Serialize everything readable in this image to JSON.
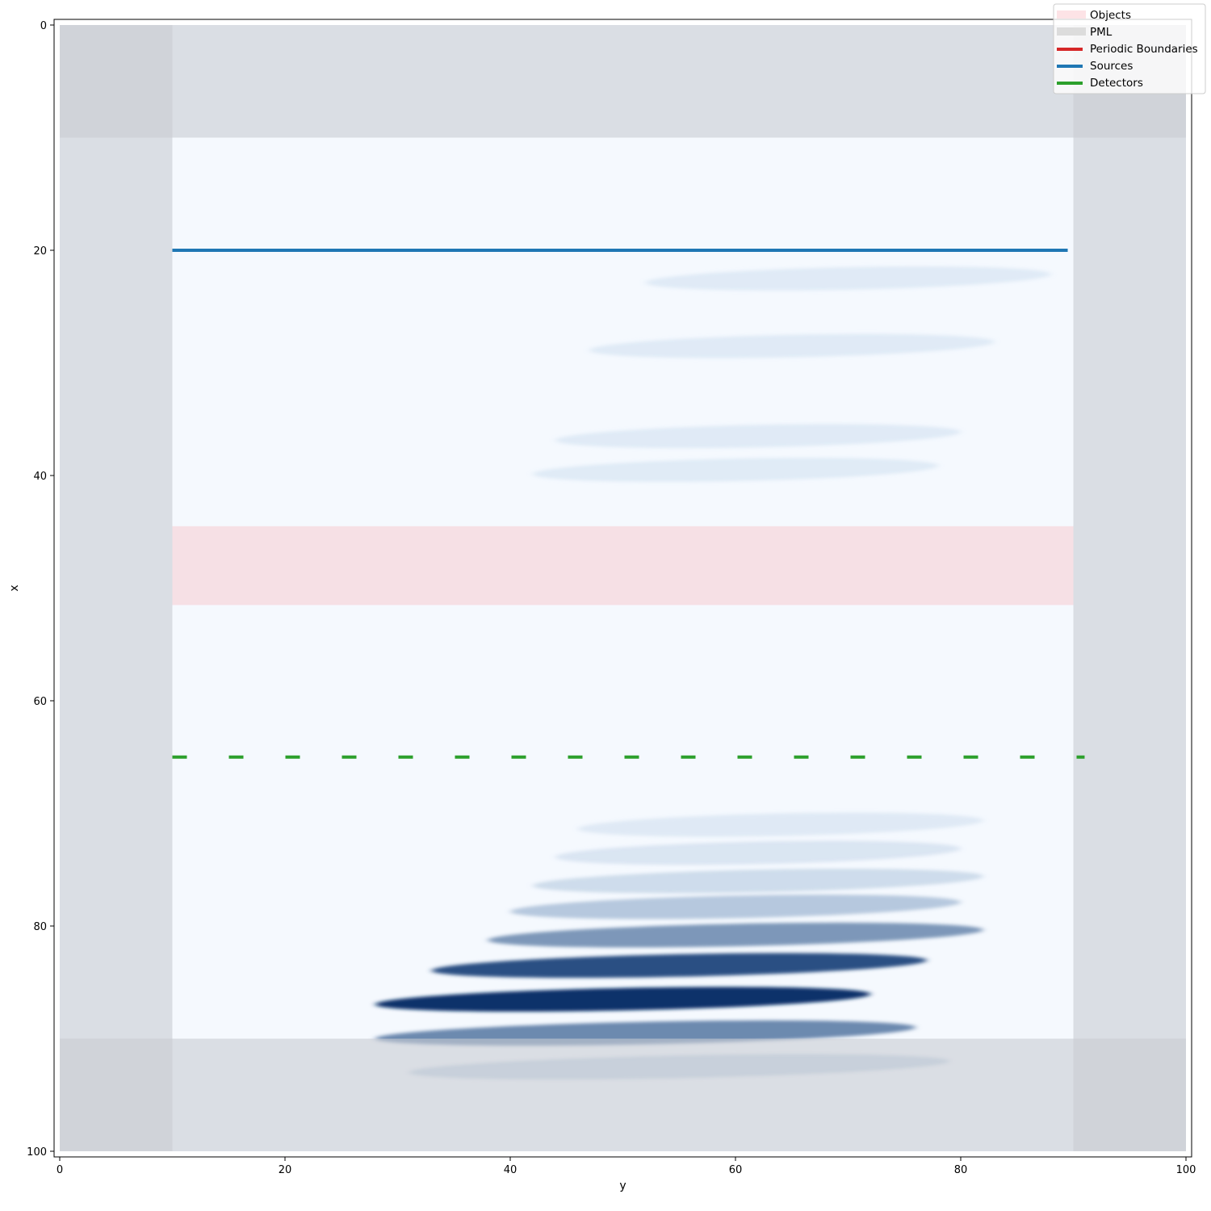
{
  "chart_data": {
    "type": "heatmap",
    "title": "",
    "xlabel": "y",
    "ylabel": "x",
    "x_axis": {
      "label": "y",
      "range": [
        0,
        100
      ],
      "ticks": [
        0,
        20,
        40,
        60,
        80,
        100
      ]
    },
    "y_axis": {
      "label": "x",
      "range": [
        0,
        100
      ],
      "inverted": true,
      "ticks": [
        0,
        20,
        40,
        60,
        80,
        100
      ]
    },
    "grid": false,
    "colormap": "Blues",
    "colors": {
      "field_dark": "#08306b",
      "field_mid": "#4a90c4",
      "field_light": "#f5f9fe",
      "pml": "#c8ccd2",
      "pml_corner": "#b9bdc2",
      "object": "#f6dde2",
      "source": "#1f77b4",
      "detector": "#2ca02c",
      "periodic": "#d62728"
    },
    "pml": {
      "thickness": 10
    },
    "objects": [
      {
        "name": "Objects",
        "x_range": [
          44.5,
          51.5
        ],
        "y_range": [
          10,
          90
        ]
      }
    ],
    "sources": [
      {
        "name": "Sources",
        "x": 20,
        "y_range": [
          10,
          89.5
        ]
      }
    ],
    "detectors": [
      {
        "name": "Detectors",
        "x": 65,
        "y_range": [
          10,
          91
        ],
        "style": "dashed"
      }
    ],
    "field_bands": [
      {
        "x": 86.5,
        "y_center": 50,
        "spread": 22,
        "intensity": 1.0
      },
      {
        "x": 83.5,
        "y_center": 55,
        "spread": 22,
        "intensity": 0.82
      },
      {
        "x": 80.8,
        "y_center": 60,
        "spread": 22,
        "intensity": 0.5
      },
      {
        "x": 89.5,
        "y_center": 52,
        "spread": 24,
        "intensity": 0.55
      },
      {
        "x": 78.3,
        "y_center": 60,
        "spread": 20,
        "intensity": 0.28
      },
      {
        "x": 76.0,
        "y_center": 62,
        "spread": 20,
        "intensity": 0.16
      },
      {
        "x": 92.5,
        "y_center": 55,
        "spread": 24,
        "intensity": 0.2
      },
      {
        "x": 73.5,
        "y_center": 62,
        "spread": 18,
        "intensity": 0.08
      },
      {
        "x": 71.0,
        "y_center": 64,
        "spread": 18,
        "intensity": 0.05
      },
      {
        "x": 22.5,
        "y_center": 70,
        "spread": 18,
        "intensity": 0.04
      },
      {
        "x": 28.5,
        "y_center": 65,
        "spread": 18,
        "intensity": 0.04
      },
      {
        "x": 36.5,
        "y_center": 62,
        "spread": 18,
        "intensity": 0.04
      },
      {
        "x": 39.5,
        "y_center": 60,
        "spread": 18,
        "intensity": 0.035
      }
    ],
    "legend": {
      "location": "top-right",
      "entries": [
        {
          "label": "Objects",
          "kind": "patch",
          "color": "#fde3e6"
        },
        {
          "label": "PML",
          "kind": "patch",
          "color": "#dcdcdc"
        },
        {
          "label": "Periodic Boundaries",
          "kind": "line",
          "color": "#d62728"
        },
        {
          "label": "Sources",
          "kind": "line",
          "color": "#1f77b4"
        },
        {
          "label": "Detectors",
          "kind": "line",
          "color": "#2ca02c"
        }
      ]
    }
  }
}
